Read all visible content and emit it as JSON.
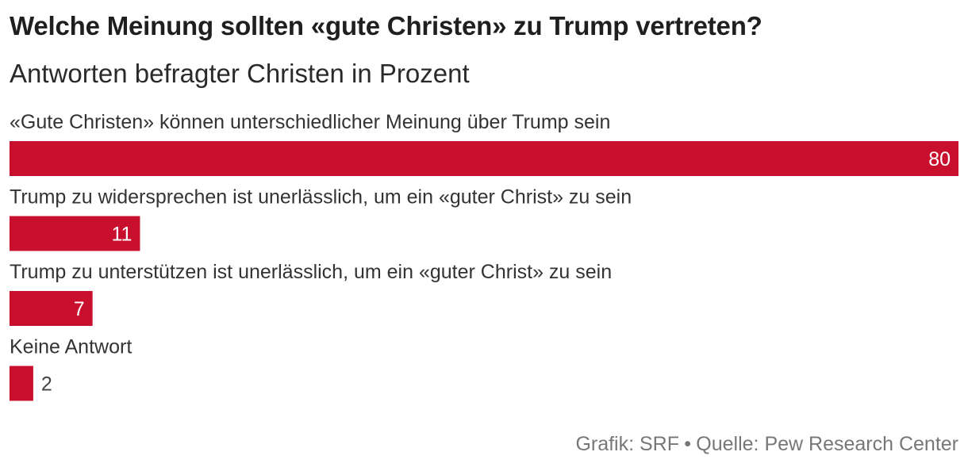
{
  "title": "Welche Meinung sollten «gute Christen» zu Trump vertreten?",
  "subtitle": "Antworten befragter Christen in Prozent",
  "footer": {
    "credit": "Grafik: SRF",
    "separator": "•",
    "source": "Quelle: Pew Research Center"
  },
  "colors": {
    "bar": "#c8102e"
  },
  "chart_data": {
    "type": "bar",
    "orientation": "horizontal",
    "categories": [
      "«Gute Christen» können unterschiedlicher Meinung über Trump sein",
      "Trump zu widersprechen ist unerlässlich, um ein «guter Christ» zu sein",
      "Trump zu unterstützen ist unerlässlich, um ein «guter Christ» zu sein",
      "Keine Antwort"
    ],
    "values": [
      80,
      11,
      7,
      2
    ],
    "xlim": [
      0,
      80
    ],
    "grid": false,
    "legend": "none"
  }
}
